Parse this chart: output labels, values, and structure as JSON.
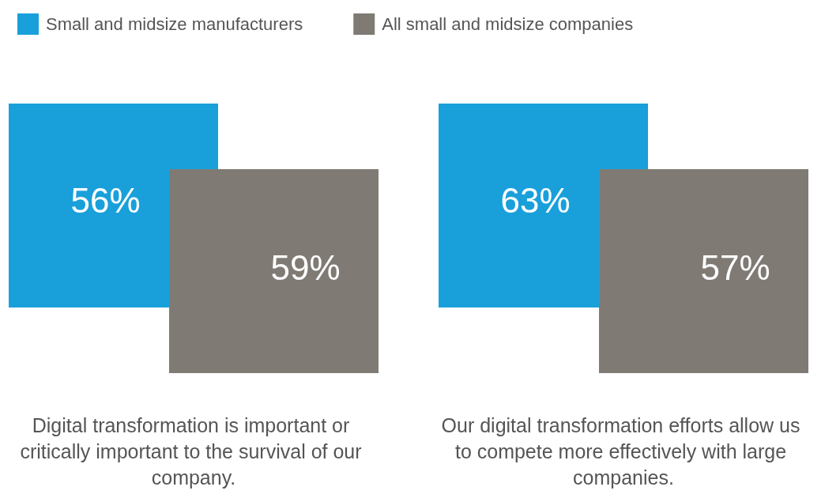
{
  "chart_data": {
    "type": "other",
    "categories": [
      "Digital transformation is important or critically important to the survival of our company.",
      "Our digital transformation efforts allow us to compete more effectively with large companies."
    ],
    "series": [
      {
        "name": "Small and midsize manufacturers",
        "color": "#19a0db",
        "values": [
          56,
          63
        ],
        "value_labels": [
          "56%",
          "63%"
        ]
      },
      {
        "name": "All small and midsize companies",
        "color": "#7f7b74",
        "values": [
          59,
          57
        ],
        "value_labels": [
          "59%",
          "57%"
        ]
      }
    ],
    "legend": "top left"
  }
}
